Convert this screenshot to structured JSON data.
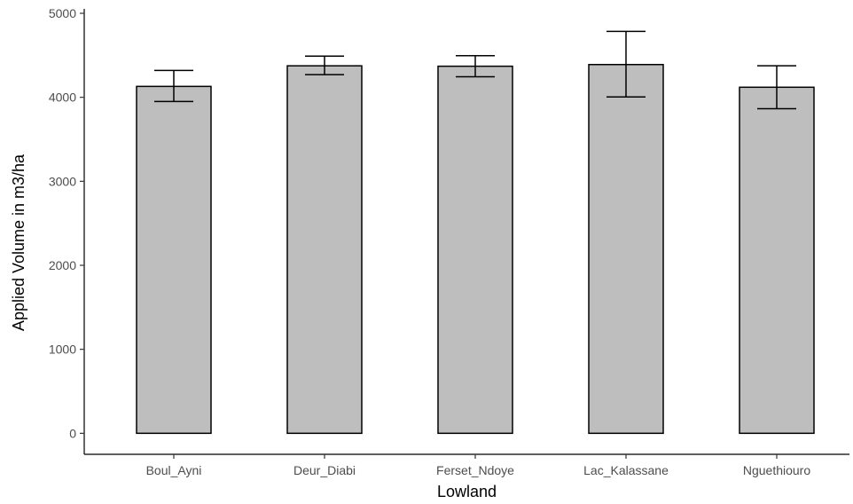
{
  "chart_data": {
    "type": "bar",
    "title": "",
    "xlabel": "Lowland",
    "ylabel": "Applied Volume in m3/ha",
    "categories": [
      "Boul_Ayni",
      "Deur_Diabi",
      "Ferset_Ndoye",
      "Lac_Kalassane",
      "Nguethiouro"
    ],
    "values": [
      4130,
      4375,
      4370,
      4390,
      4120
    ],
    "error_low": [
      3950,
      4270,
      4245,
      4005,
      3865
    ],
    "error_high": [
      4320,
      4490,
      4495,
      4785,
      4375
    ],
    "yticks": [
      0,
      1000,
      2000,
      3000,
      4000,
      5000
    ],
    "ylim": [
      -250,
      5000
    ],
    "grid": false,
    "colors": {
      "bar_fill": "#bebebe",
      "bar_stroke": "#000000"
    }
  }
}
